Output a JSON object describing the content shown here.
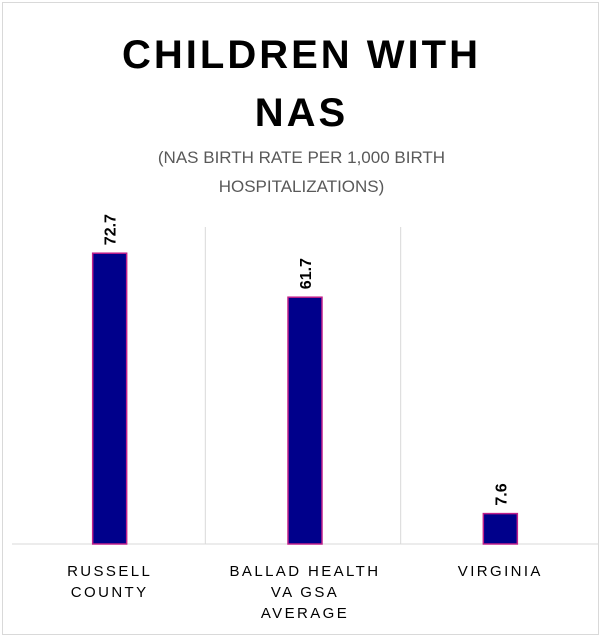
{
  "chart_data": {
    "type": "bar",
    "title_line1": "CHILDREN WITH",
    "title_line2": "NAS",
    "subtitle_line1": "(NAS BIRTH RATE PER 1,000 BIRTH",
    "subtitle_line2": "HOSPITALIZATIONS)",
    "categories": [
      [
        "RUSSELL",
        "COUNTY"
      ],
      [
        "BALLAD HEALTH",
        "VA GSA",
        "AVERAGE"
      ],
      [
        "VIRGINIA"
      ]
    ],
    "values": [
      72.7,
      61.7,
      7.6
    ],
    "value_labels": [
      "72.7",
      "61.7",
      "7.6"
    ],
    "ylim": [
      0,
      100
    ],
    "grid": "vertical separators",
    "colors": {
      "bar_fill": "#00008B",
      "bar_border": "#C0208A",
      "grid": "#d9d9d9"
    }
  }
}
